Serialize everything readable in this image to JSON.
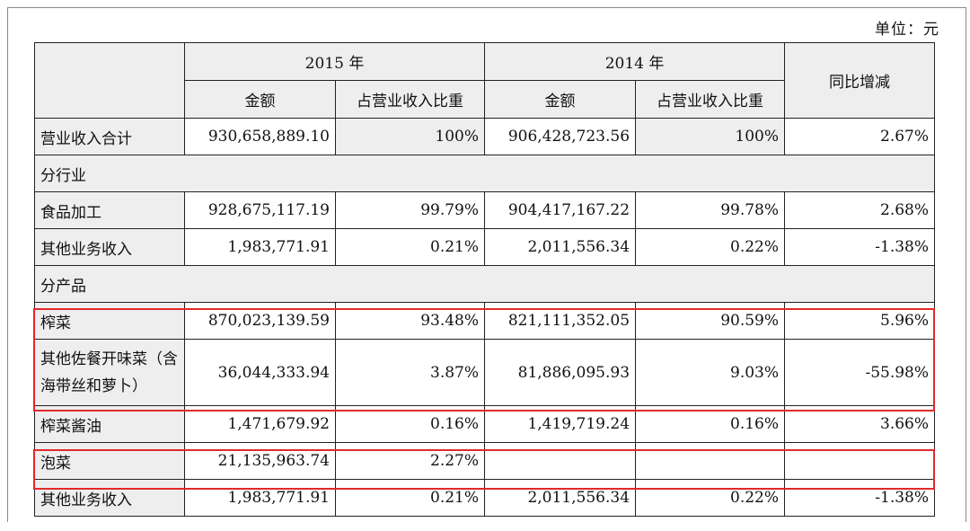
{
  "unit_label": "单位：元",
  "header": {
    "year_2015": "2015 年",
    "year_2014": "2014 年",
    "amount": "金额",
    "ratio": "占营业收入比重",
    "yoy": "同比增减"
  },
  "total_row": {
    "label": "营业收入合计",
    "amt_2015": "930,658,889.10",
    "ratio_2015": "100%",
    "amt_2014": "906,428,723.56",
    "ratio_2014": "100%",
    "yoy": "2.67%"
  },
  "section_industry": "分行业",
  "industry_rows": [
    {
      "label": "食品加工",
      "amt_2015": "928,675,117.19",
      "ratio_2015": "99.79%",
      "amt_2014": "904,417,167.22",
      "ratio_2014": "99.78%",
      "yoy": "2.68%"
    },
    {
      "label": "其他业务收入",
      "amt_2015": "1,983,771.91",
      "ratio_2015": "0.21%",
      "amt_2014": "2,011,556.34",
      "ratio_2014": "0.22%",
      "yoy": "-1.38%"
    }
  ],
  "section_product": "分产品",
  "product_rows": [
    {
      "label": "榨菜",
      "amt_2015": "870,023,139.59",
      "ratio_2015": "93.48%",
      "amt_2014": "821,111,352.05",
      "ratio_2014": "90.59%",
      "yoy": "5.96%"
    },
    {
      "label": "其他佐餐开味菜（含海带丝和萝卜）",
      "amt_2015": "36,044,333.94",
      "ratio_2015": "3.87%",
      "amt_2014": "81,886,095.93",
      "ratio_2014": "9.03%",
      "yoy": "-55.98%"
    },
    {
      "label": "榨菜酱油",
      "amt_2015": "1,471,679.92",
      "ratio_2015": "0.16%",
      "amt_2014": "1,419,719.24",
      "ratio_2014": "0.16%",
      "yoy": "3.66%"
    },
    {
      "label": "泡菜",
      "amt_2015": "21,135,963.74",
      "ratio_2015": "2.27%",
      "amt_2014": "",
      "ratio_2014": "",
      "yoy": ""
    },
    {
      "label": "其他业务收入",
      "amt_2015": "1,983,771.91",
      "ratio_2015": "0.21%",
      "amt_2014": "2,011,556.34",
      "ratio_2014": "0.22%",
      "yoy": "-1.38%"
    }
  ],
  "highlight_color": "#e02a2a"
}
